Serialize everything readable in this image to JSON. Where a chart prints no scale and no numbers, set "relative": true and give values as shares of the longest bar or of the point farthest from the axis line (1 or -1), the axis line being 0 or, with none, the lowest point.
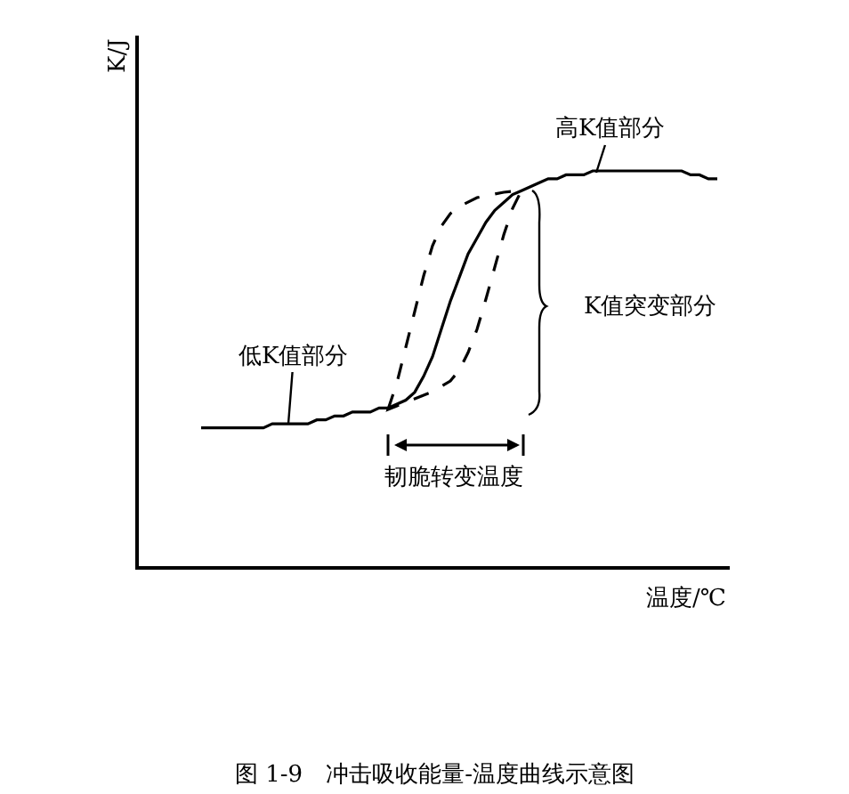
{
  "chart_data": {
    "type": "line",
    "relative": true,
    "xlabel": "温度/℃",
    "categories": [
      null,
      null,
      null,
      null,
      null,
      null,
      null,
      null,
      null,
      null,
      null,
      null,
      null,
      null,
      null,
      null,
      null,
      null,
      null,
      null,
      null,
      null,
      null,
      null,
      null,
      null,
      null,
      null,
      null,
      null,
      null,
      null,
      null,
      null,
      null,
      null,
      null,
      null,
      null,
      null,
      null,
      null,
      null,
      null,
      null,
      null,
      null,
      null,
      null,
      null,
      null,
      null,
      null,
      null,
      null,
      null,
      null,
      null,
      null
    ],
    "series": [
      {
        "color": "#000000",
        "line_style": "solid",
        "values": [
          0.35,
          0.35,
          0.35,
          0.35,
          0.35,
          0.35,
          0.35,
          0.35,
          0.36,
          0.36,
          0.36,
          0.36,
          0.36,
          0.37,
          0.37,
          0.38,
          0.38,
          0.39,
          0.39,
          0.39,
          0.4,
          0.4,
          0.41,
          0.42,
          0.44,
          0.48,
          0.53,
          0.6,
          0.67,
          0.73,
          0.79,
          0.83,
          0.87,
          0.9,
          0.92,
          0.94,
          0.95,
          0.96,
          0.97,
          0.98,
          0.98,
          0.99,
          0.99,
          0.99,
          1.0,
          1.0,
          1.0,
          1.0,
          1.0,
          1.0,
          1.0,
          1.0,
          1.0,
          1.0,
          1.0,
          0.99,
          0.99,
          0.98,
          0.98
        ]
      }
    ],
    "annotations": [
      "K/J",
      "高K值部分",
      "低K值部分",
      "K值突变部分",
      "韧脆转变温度",
      "图 1-9　冲击吸收能量-温度曲线示意图"
    ]
  }
}
